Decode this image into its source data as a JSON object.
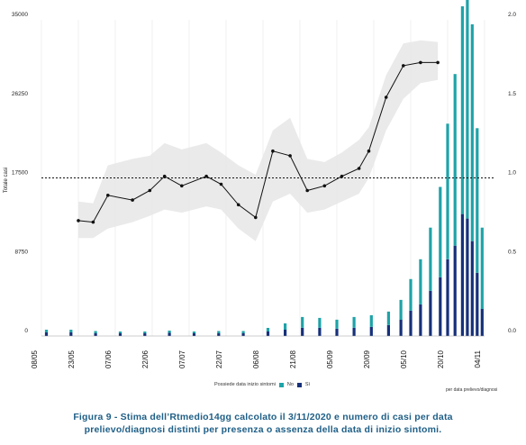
{
  "chart_data": {
    "type": "bar+line",
    "ylabel_left": "Totale casi",
    "ylim_left": [
      0,
      35000
    ],
    "yticks_left": [
      "0",
      "8750",
      "17500",
      "26250",
      "35000"
    ],
    "ylim_right": [
      0,
      2.0
    ],
    "yticks_right": [
      "0.0",
      "0.5",
      "1.0",
      "1.5",
      "2.0"
    ],
    "xticks": [
      "08/05",
      "23/05",
      "07/06",
      "22/06",
      "07/07",
      "22/07",
      "06/08",
      "21/08",
      "05/09",
      "20/09",
      "05/10",
      "20/10",
      "04/11"
    ],
    "x_start": "2020-05-08",
    "x_end": "2020-11-04",
    "reference_line": 1.0,
    "legend_title": "Possiede data inizio sintomi",
    "legend": [
      {
        "name": "No",
        "color": "#1ea3a8"
      },
      {
        "name": "Sì",
        "color": "#16307a"
      }
    ],
    "footnote": "per data prelievo/diagnosi",
    "rt_series": {
      "dates": [
        "2020-05-23",
        "2020-05-29",
        "2020-06-04",
        "2020-06-14",
        "2020-06-21",
        "2020-06-27",
        "2020-07-04",
        "2020-07-14",
        "2020-07-20",
        "2020-07-27",
        "2020-08-03",
        "2020-08-10",
        "2020-08-17",
        "2020-08-24",
        "2020-08-31",
        "2020-09-07",
        "2020-09-14",
        "2020-09-18",
        "2020-09-25",
        "2020-10-02",
        "2020-10-09",
        "2020-10-16"
      ],
      "values": [
        0.73,
        0.72,
        0.89,
        0.86,
        0.92,
        1.01,
        0.95,
        1.01,
        0.96,
        0.83,
        0.75,
        1.17,
        1.14,
        0.92,
        0.95,
        1.01,
        1.06,
        1.17,
        1.51,
        1.71,
        1.73,
        1.73
      ],
      "ci_low": [
        0.62,
        0.62,
        0.68,
        0.72,
        0.76,
        0.8,
        0.78,
        0.82,
        0.8,
        0.68,
        0.6,
        0.85,
        0.9,
        0.78,
        0.8,
        0.85,
        0.9,
        1.0,
        1.3,
        1.5,
        1.6,
        1.62
      ],
      "ci_high": [
        0.85,
        0.84,
        1.08,
        1.12,
        1.14,
        1.22,
        1.18,
        1.22,
        1.16,
        1.08,
        1.02,
        1.3,
        1.38,
        1.12,
        1.1,
        1.16,
        1.24,
        1.32,
        1.65,
        1.85,
        1.87,
        1.86
      ]
    },
    "cases": {
      "dates": [
        "2020-05-10",
        "2020-05-20",
        "2020-05-30",
        "2020-06-09",
        "2020-06-19",
        "2020-06-29",
        "2020-07-09",
        "2020-07-19",
        "2020-07-29",
        "2020-08-08",
        "2020-08-15",
        "2020-08-22",
        "2020-08-29",
        "2020-09-05",
        "2020-09-12",
        "2020-09-19",
        "2020-09-26",
        "2020-10-01",
        "2020-10-05",
        "2020-10-09",
        "2020-10-13",
        "2020-10-17",
        "2020-10-20",
        "2020-10-23",
        "2020-10-26",
        "2020-10-28",
        "2020-10-30",
        "2020-11-01",
        "2020-11-03"
      ],
      "no": [
        300,
        300,
        250,
        200,
        200,
        250,
        200,
        250,
        250,
        400,
        700,
        1200,
        1100,
        1000,
        1200,
        1300,
        1500,
        2200,
        3500,
        5000,
        7000,
        10000,
        15000,
        19000,
        23000,
        26000,
        24000,
        16000,
        9000
      ],
      "si": [
        400,
        400,
        300,
        300,
        300,
        350,
        300,
        300,
        300,
        500,
        700,
        900,
        900,
        800,
        900,
        1000,
        1200,
        1800,
        2800,
        3500,
        5000,
        6500,
        8500,
        10000,
        13500,
        13000,
        10500,
        7000,
        3000
      ]
    }
  },
  "caption": {
    "line1": "Figura 9 - Stima dell’Rtmedio14gg calcolato il 3/11/2020 e numero di casi per data",
    "line2": "prelievo/diagnosi distinti per presenza o assenza della data di inizio sintomi."
  }
}
